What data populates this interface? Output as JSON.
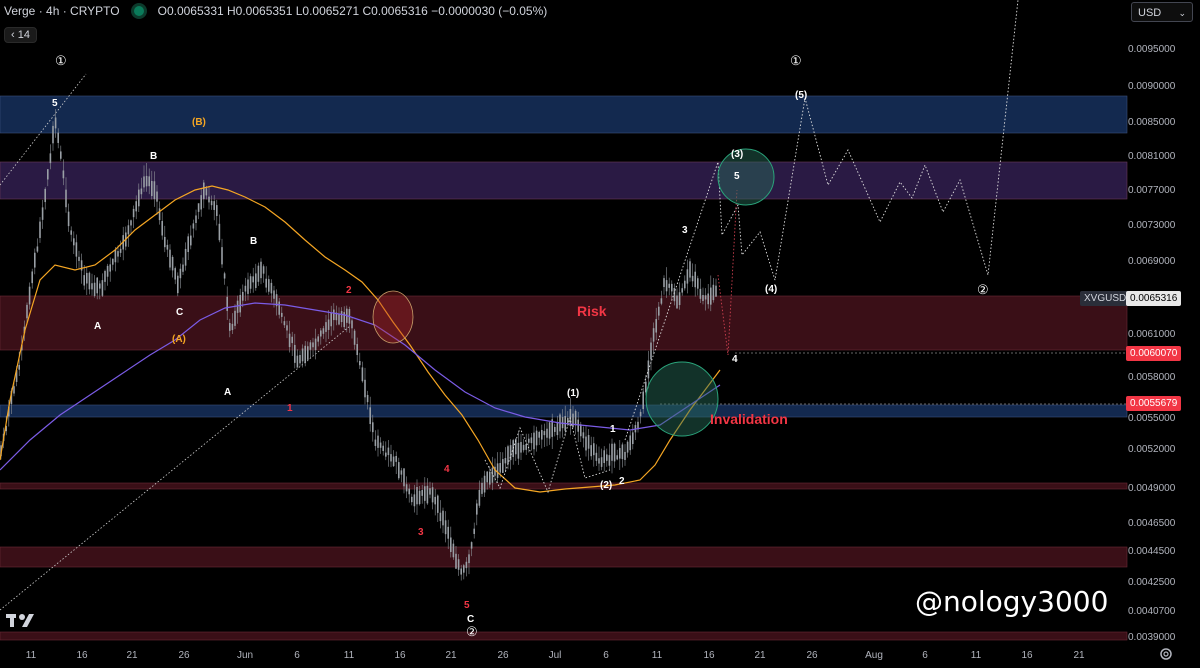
{
  "header": {
    "symbol": "Verge · 4h · CRYPTO",
    "ohlc": "O0.0065331 H0.0065351 L0.0065271 C0.0065316 −0.0000030 (−0.05%)",
    "ma_length": "14",
    "collapse_icon": "chevron-left-icon"
  },
  "currency": "USD",
  "price_axis": [
    "0.0095000",
    "0.0090000",
    "0.0085000",
    "0.0081000",
    "0.0077000",
    "0.0073000",
    "0.0069000",
    "0.0061000",
    "0.0058000",
    "0.0055000",
    "0.0052000",
    "0.0049000",
    "0.0046500",
    "0.0044500",
    "0.0042500",
    "0.0040700",
    "0.0039000"
  ],
  "price_tags": {
    "symbol": "XVGUSD",
    "last": "0.0065316",
    "level1": "0.0060070",
    "level2": "0.0055679"
  },
  "time_axis": [
    "11",
    "16",
    "21",
    "26",
    "Jun",
    "6",
    "11",
    "16",
    "21",
    "26",
    "Jul",
    "6",
    "11",
    "16",
    "21",
    "26",
    "Aug",
    "6",
    "11",
    "16",
    "21"
  ],
  "annotations": {
    "risk": "Risk",
    "invalidation": "Invalidation"
  },
  "wave_labels": {
    "top_one": "①",
    "white_5": "5",
    "orange_B": "(B)",
    "white_B1": "B",
    "white_A1": "A",
    "white_C": "C",
    "orange_A": "(A)",
    "white_A2": "A",
    "white_B2": "B",
    "red_1": "1",
    "red_2": "2",
    "red_3": "3",
    "red_4": "4",
    "red_5": "5",
    "bottom_C": "C",
    "bottom_two": "②",
    "w_paren1": "(1)",
    "w_1": "1",
    "w_paren2": "(2)",
    "w_2": "2",
    "w_3": "3",
    "w_paren3": "(3)",
    "w_5": "5",
    "w_4": "4",
    "proj_paren4": "(4)",
    "proj_paren5": "(5)",
    "proj_one": "①",
    "proj_two": "②"
  },
  "watermark": "@nology3000",
  "colors": {
    "background": "#000000",
    "up_candle": "#9aa0a6",
    "ma_fast": "#f5a623",
    "ma_slow": "#7b5ce6",
    "zone_blue": "#13294f",
    "zone_purple": "#2a1a44",
    "zone_red": "#3a0f17",
    "tag_red": "#f23645",
    "accent_red": "#f23645"
  }
}
